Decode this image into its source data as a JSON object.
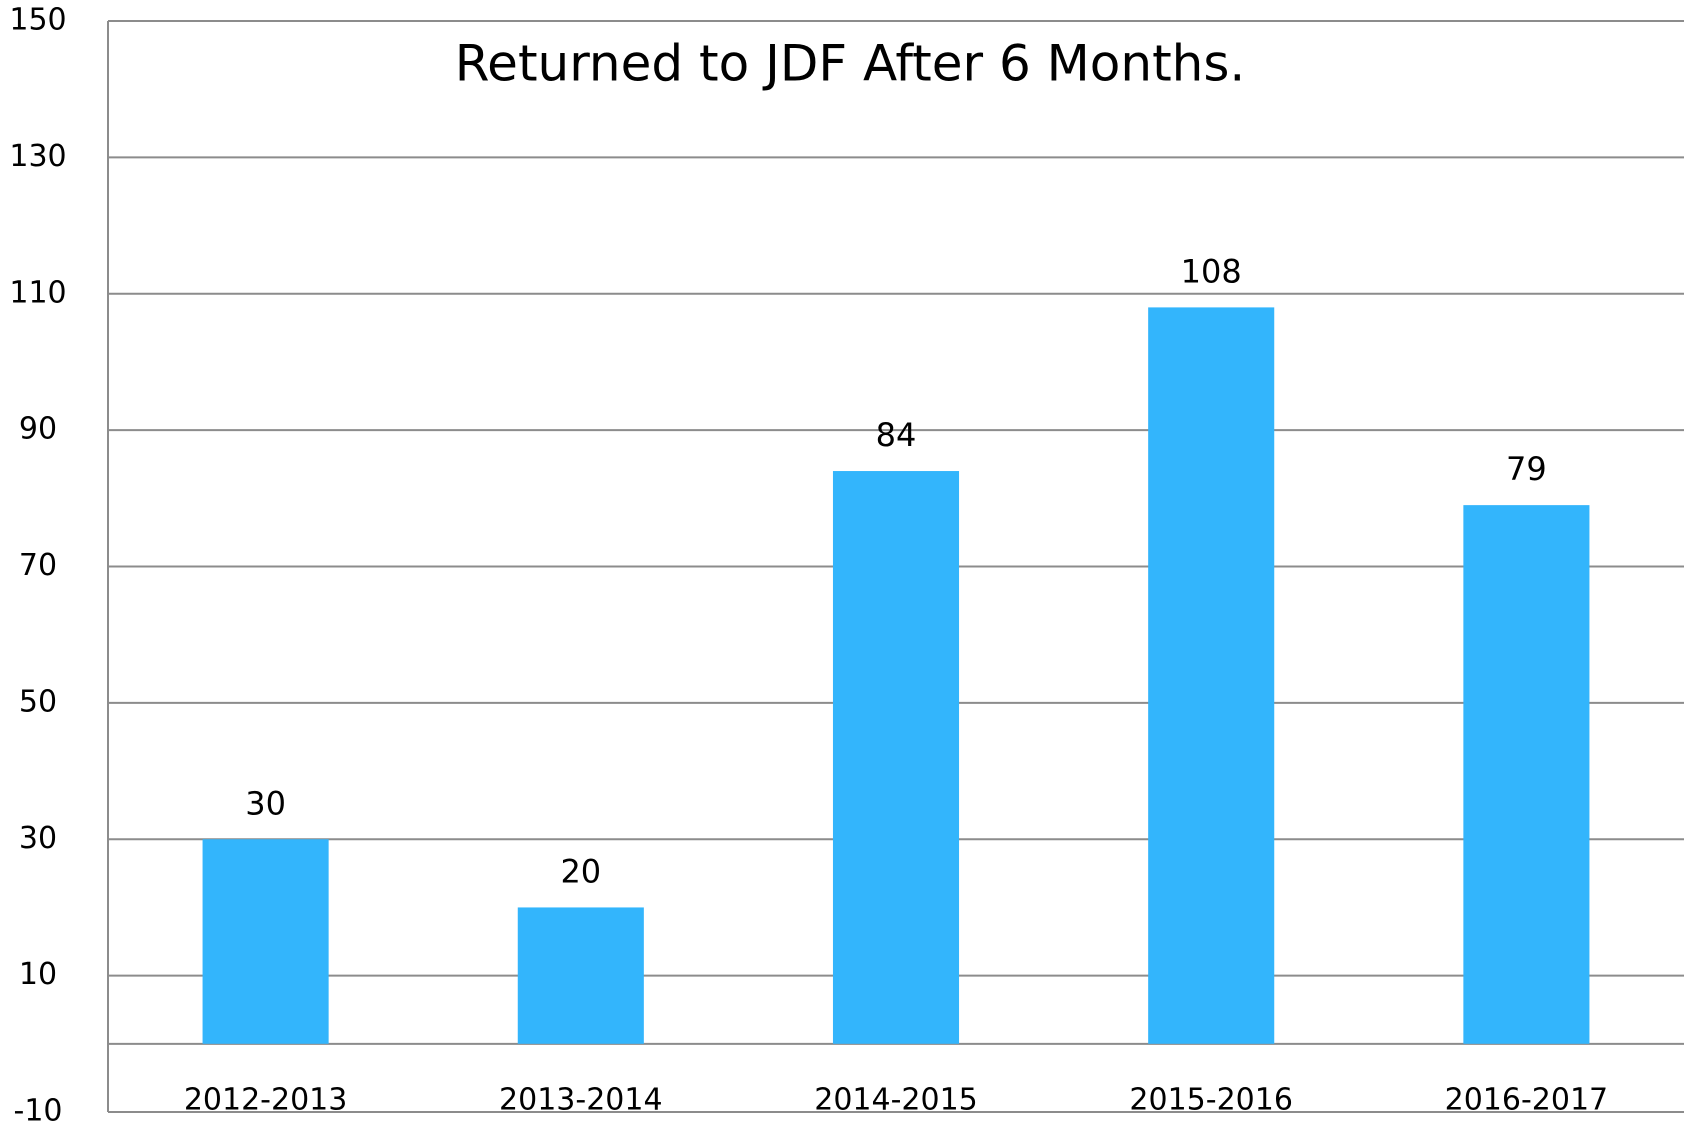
{
  "chart_data": {
    "type": "bar",
    "title": "Returned to JDF After 6 Months.",
    "categories": [
      "2012-2013",
      "2013-2014",
      "2014-2015",
      "2015-2016",
      "2016-2017"
    ],
    "values": [
      30,
      20,
      84,
      108,
      79
    ],
    "color": "#33b5fc",
    "ylim": [
      -10,
      150
    ],
    "yticks": [
      -10,
      10,
      30,
      50,
      70,
      90,
      110,
      130,
      150
    ],
    "grid": true
  }
}
